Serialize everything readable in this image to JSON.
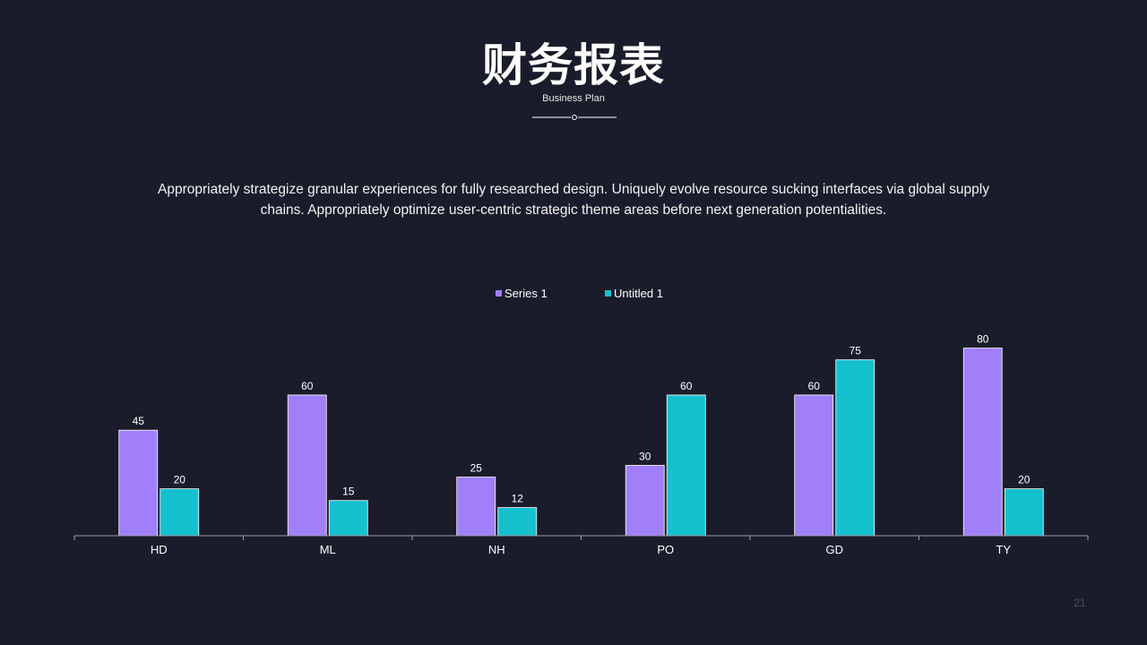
{
  "slide": {
    "title": "财务报表",
    "subtitle": "Business Plan",
    "paragraph": "Appropriately strategize granular experiences for fully researched design. Uniquely evolve resource sucking interfaces via global supply chains. Appropriately optimize user-centric strategic theme areas before next generation potentialities.",
    "page_number": "21"
  },
  "colors": {
    "background": "#1a1c2b",
    "series_1": "#a17ffb",
    "series_2": "#15c1cf",
    "axis": "#9a9cab"
  },
  "chart_data": {
    "type": "bar",
    "categories": [
      "HD",
      "ML",
      "NH",
      "PO",
      "GD",
      "TY"
    ],
    "series": [
      {
        "name": "Series 1",
        "values": [
          45,
          60,
          25,
          30,
          60,
          80
        ],
        "color": "#a17ffb"
      },
      {
        "name": "Untitled 1",
        "values": [
          20,
          15,
          12,
          60,
          75,
          20
        ],
        "color": "#15c1cf"
      }
    ],
    "ylim": [
      0,
      80
    ],
    "legend": "top-center",
    "grid": false,
    "data_labels": true
  }
}
